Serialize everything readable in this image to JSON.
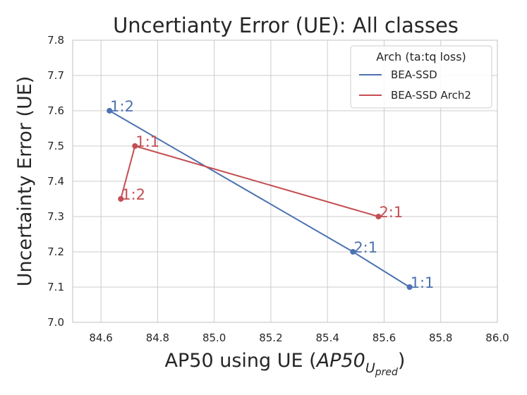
{
  "chart_data": {
    "type": "line",
    "title": "Uncertianty Error (UE): All classes",
    "xlabel_main": "AP50 using UE (",
    "xlabel_math": "AP50",
    "xlabel_sub": "U",
    "xlabel_subsub": "pred",
    "xlabel_close": ")",
    "ylabel": "Uncertainty Error (UE)",
    "xlim": [
      84.5,
      86.0
    ],
    "ylim": [
      7.0,
      7.8
    ],
    "xticks": [
      "84.6",
      "84.8",
      "85.0",
      "85.2",
      "85.4",
      "85.6",
      "85.8",
      "86.0"
    ],
    "yticks": [
      "7.0",
      "7.1",
      "7.2",
      "7.3",
      "7.4",
      "7.5",
      "7.6",
      "7.7",
      "7.8"
    ],
    "grid": true,
    "legend": {
      "title": "Arch (ta:tq loss)",
      "placement": "top-right"
    },
    "series": [
      {
        "name": "BEA-SSD",
        "color": "#4C72B0",
        "points": [
          {
            "x": 84.63,
            "y": 7.6,
            "label": "1:2"
          },
          {
            "x": 85.49,
            "y": 7.2,
            "label": "2:1"
          },
          {
            "x": 85.69,
            "y": 7.1,
            "label": "1:1"
          }
        ]
      },
      {
        "name": "BEA-SSD Arch2",
        "color": "#C44E52",
        "points": [
          {
            "x": 84.67,
            "y": 7.35,
            "label": "1:2"
          },
          {
            "x": 84.72,
            "y": 7.5,
            "label": "1:1"
          },
          {
            "x": 85.58,
            "y": 7.3,
            "label": "2:1"
          }
        ]
      }
    ]
  }
}
